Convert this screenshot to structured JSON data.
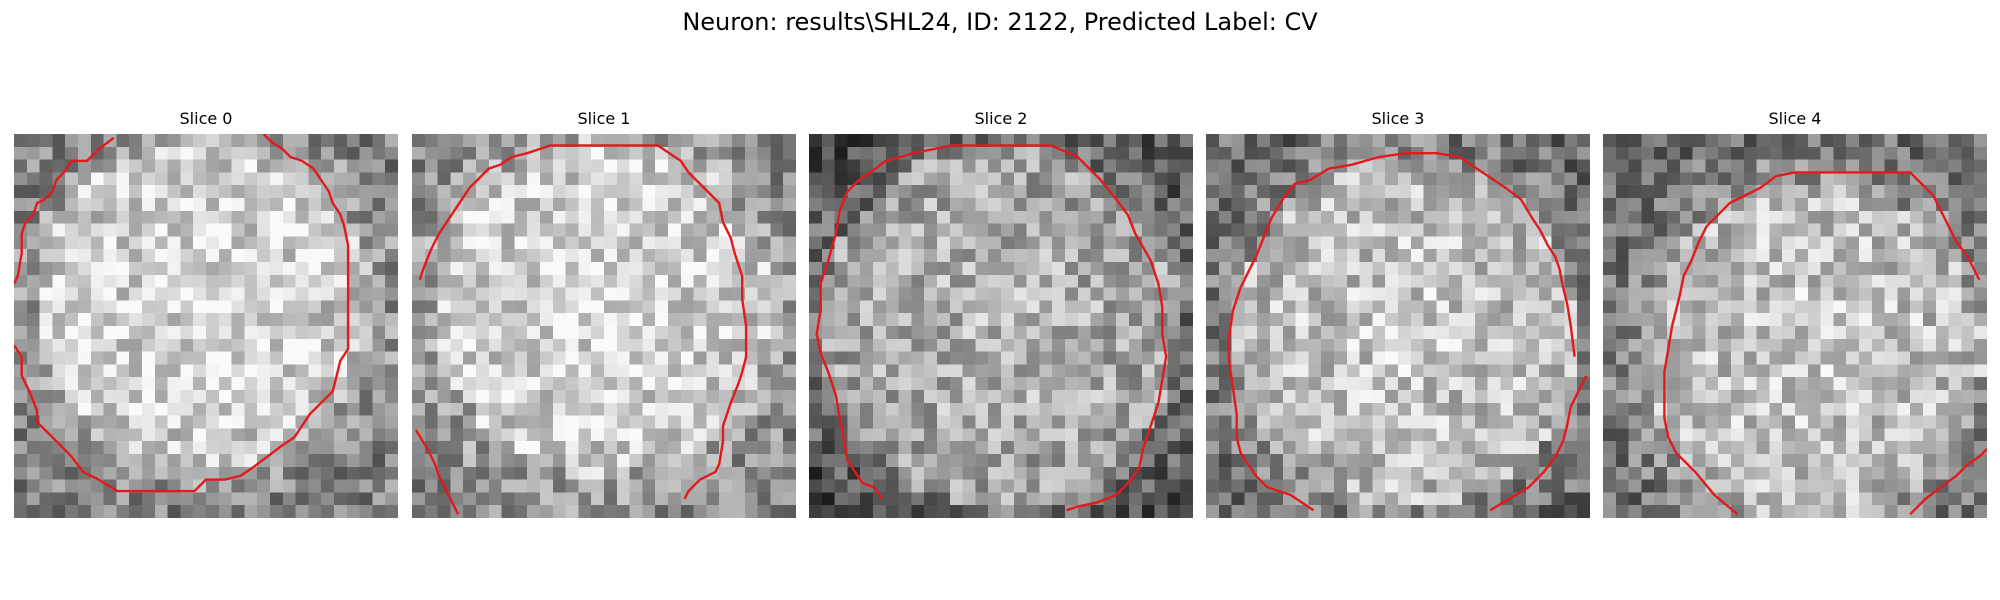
{
  "figure": {
    "title": "Neuron: results\\SHL24, ID: 2122, Predicted Label: CV"
  },
  "panels": [
    {
      "title": "Slice 0",
      "seed": 11,
      "base": 0.64,
      "contrast": 0.22,
      "center": [
        0.5,
        0.44
      ],
      "radius": 0.43
    },
    {
      "title": "Slice 1",
      "seed": 23,
      "base": 0.66,
      "contrast": 0.2,
      "center": [
        0.5,
        0.45
      ],
      "radius": 0.44
    },
    {
      "title": "Slice 2",
      "seed": 37,
      "base": 0.46,
      "contrast": 0.26,
      "center": [
        0.5,
        0.5
      ],
      "radius": 0.47
    },
    {
      "title": "Slice 3",
      "seed": 41,
      "base": 0.56,
      "contrast": 0.24,
      "center": [
        0.52,
        0.52
      ],
      "radius": 0.45
    },
    {
      "title": "Slice 4",
      "seed": 53,
      "base": 0.58,
      "contrast": 0.22,
      "center": [
        0.55,
        0.57
      ],
      "radius": 0.44
    }
  ],
  "colors": {
    "contour": "#e31a1c",
    "background": "#ffffff",
    "text": "#000000"
  }
}
